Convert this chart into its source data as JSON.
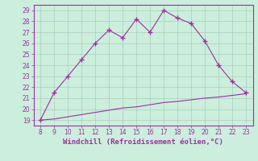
{
  "x": [
    8,
    9,
    10,
    11,
    12,
    13,
    14,
    15,
    16,
    17,
    18,
    19,
    20,
    21,
    22,
    23
  ],
  "y_main": [
    19,
    21.5,
    23,
    24.5,
    26,
    27.2,
    26.5,
    28.2,
    27,
    29,
    28.3,
    27.8,
    26.2,
    24,
    22.5,
    21.5
  ],
  "y_base": [
    19,
    19.1,
    19.3,
    19.5,
    19.7,
    19.9,
    20.1,
    20.2,
    20.4,
    20.6,
    20.7,
    20.85,
    21.0,
    21.1,
    21.25,
    21.4
  ],
  "line_color": "#9b30a0",
  "bg_color": "#cceedd",
  "grid_color": "#aaccbb",
  "tick_color": "#9b30a0",
  "label_color": "#9b30a0",
  "xlabel": "Windchill (Refroidissement éolien,°C)",
  "xlim": [
    7.5,
    23.5
  ],
  "ylim": [
    18.5,
    29.5
  ],
  "xticks": [
    8,
    9,
    10,
    11,
    12,
    13,
    14,
    15,
    16,
    17,
    18,
    19,
    20,
    21,
    22,
    23
  ],
  "yticks": [
    19,
    20,
    21,
    22,
    23,
    24,
    25,
    26,
    27,
    28,
    29
  ],
  "marker": "+"
}
